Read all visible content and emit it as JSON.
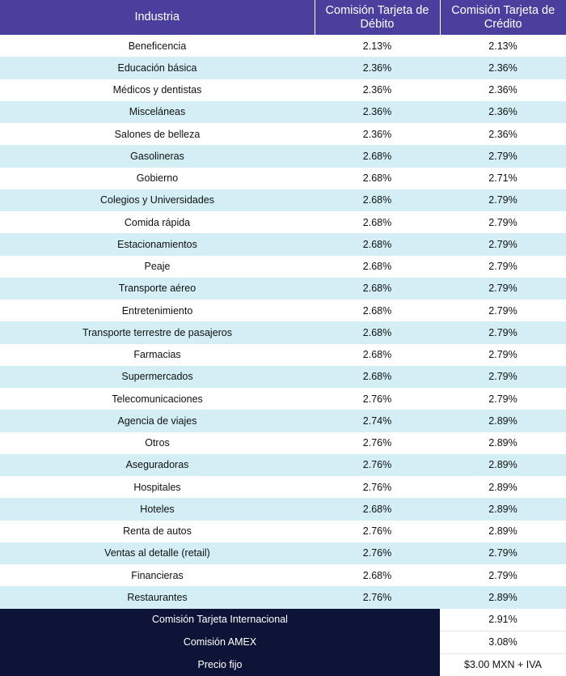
{
  "headers": {
    "industry": "Industria",
    "debit": "Comisión Tarjeta de Débito",
    "credit": "Comisión Tarjeta de Crédito"
  },
  "rows": [
    {
      "industry": "Beneficencia",
      "debit": "2.13%",
      "credit": "2.13%"
    },
    {
      "industry": "Educación básica",
      "debit": "2.36%",
      "credit": "2.36%"
    },
    {
      "industry": "Médicos y dentistas",
      "debit": "2.36%",
      "credit": "2.36%"
    },
    {
      "industry": "Misceláneas",
      "debit": "2.36%",
      "credit": "2.36%"
    },
    {
      "industry": "Salones de belleza",
      "debit": "2.36%",
      "credit": "2.36%"
    },
    {
      "industry": "Gasolineras",
      "debit": "2.68%",
      "credit": "2.79%"
    },
    {
      "industry": "Gobierno",
      "debit": "2.68%",
      "credit": "2.71%"
    },
    {
      "industry": "Colegios y Universidades",
      "debit": "2.68%",
      "credit": "2.79%"
    },
    {
      "industry": "Comida rápida",
      "debit": "2.68%",
      "credit": "2.79%"
    },
    {
      "industry": "Estacionamientos",
      "debit": "2.68%",
      "credit": "2.79%"
    },
    {
      "industry": "Peaje",
      "debit": "2.68%",
      "credit": "2.79%"
    },
    {
      "industry": "Transporte aéreo",
      "debit": "2.68%",
      "credit": "2.79%"
    },
    {
      "industry": "Entretenimiento",
      "debit": "2.68%",
      "credit": "2.79%"
    },
    {
      "industry": "Transporte terrestre de pasajeros",
      "debit": "2.68%",
      "credit": "2.79%"
    },
    {
      "industry": "Farmacias",
      "debit": "2.68%",
      "credit": "2.79%"
    },
    {
      "industry": "Supermercados",
      "debit": "2.68%",
      "credit": "2.79%"
    },
    {
      "industry": "Telecomunicaciones",
      "debit": "2.76%",
      "credit": "2.79%"
    },
    {
      "industry": "Agencia de viajes",
      "debit": "2.74%",
      "credit": "2.89%"
    },
    {
      "industry": "Otros",
      "debit": "2.76%",
      "credit": "2.89%"
    },
    {
      "industry": "Aseguradoras",
      "debit": "2.76%",
      "credit": "2.89%"
    },
    {
      "industry": "Hospitales",
      "debit": "2.76%",
      "credit": "2.89%"
    },
    {
      "industry": "Hoteles",
      "debit": "2.68%",
      "credit": "2.89%"
    },
    {
      "industry": "Renta de autos",
      "debit": "2.76%",
      "credit": "2.89%"
    },
    {
      "industry": "Ventas al detalle (retail)",
      "debit": "2.76%",
      "credit": "2.79%"
    },
    {
      "industry": "Financieras",
      "debit": "2.68%",
      "credit": "2.79%"
    },
    {
      "industry": "Restaurantes",
      "debit": "2.76%",
      "credit": "2.89%"
    }
  ],
  "footer": [
    {
      "label": "Comisión Tarjeta Internacional",
      "value": "2.91%"
    },
    {
      "label": "Comisión AMEX",
      "value": "3.08%"
    },
    {
      "label": "Precio fijo",
      "value": "$3.00 MXN + IVA"
    }
  ],
  "colors": {
    "header_bg": "#4b3f9e",
    "stripe_bg": "#d3eef4",
    "footer_bg": "#0e1438"
  }
}
